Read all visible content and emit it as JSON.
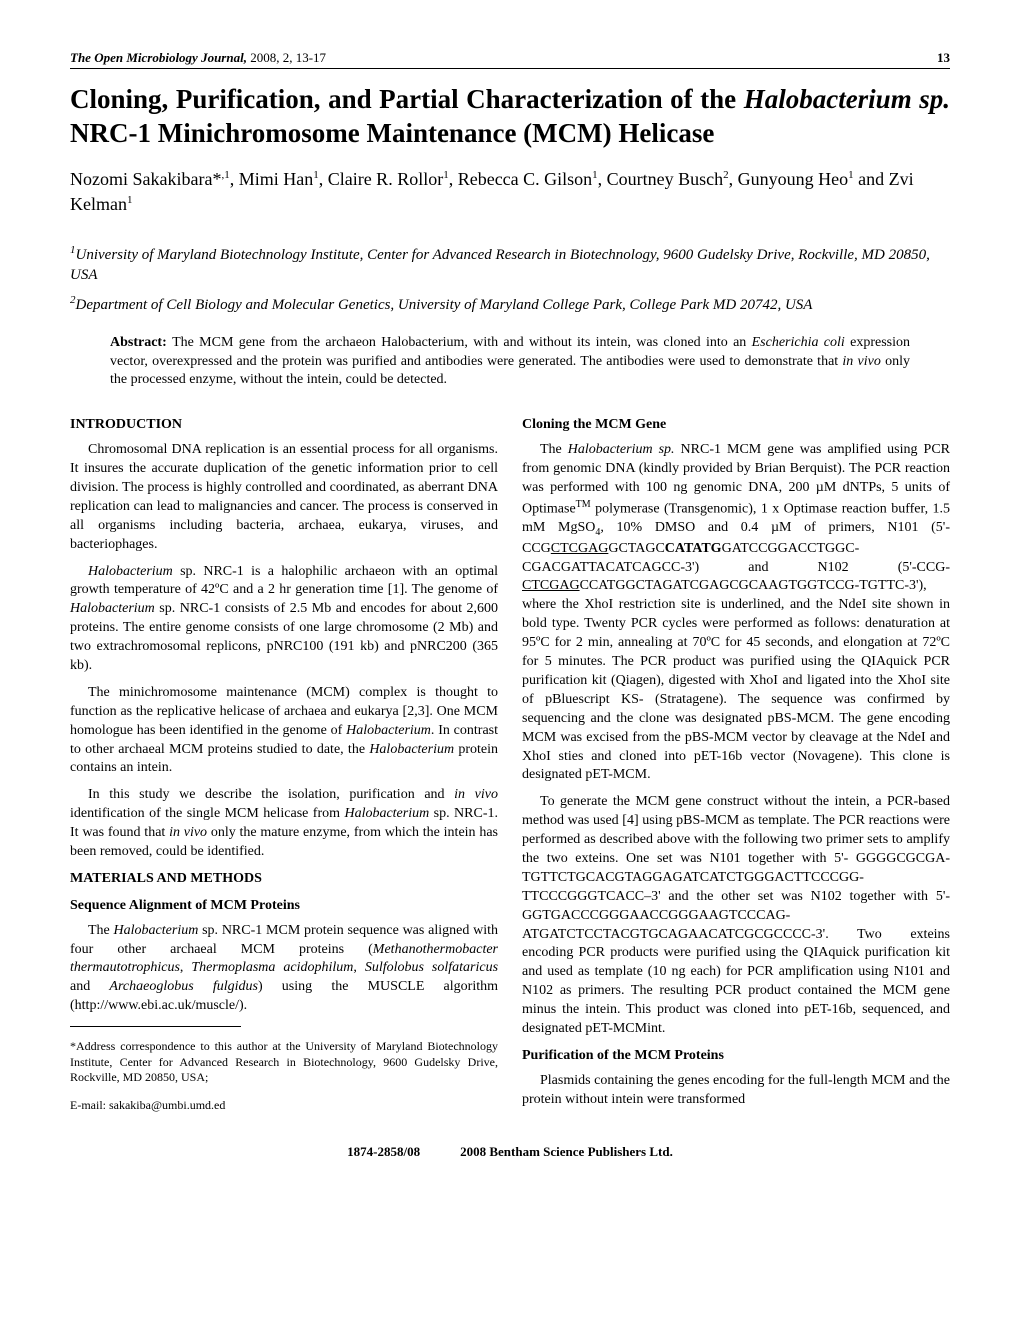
{
  "header": {
    "journal_name": "The Open Microbiology Journal,",
    "year_vol_pages": " 2008, 2, 13-17",
    "page_num": "13"
  },
  "title": {
    "part1": "Cloning, Purification, and Partial Characterization of the ",
    "italic": "Halobacterium sp.",
    "part2": " NRC-1 Minichromosome Maintenance (MCM) Helicase"
  },
  "authors": {
    "a1": "Nozomi Sakakibara*",
    "a1_sup": ",1",
    "a2": ", Mimi Han",
    "a2_sup": "1",
    "a3": ", Claire R. Rollor",
    "a3_sup": "1",
    "a4": ", Rebecca C. Gilson",
    "a4_sup": "1",
    "a5": ", Courtney Busch",
    "a5_sup": "2",
    "a6": ", Gunyoung Heo",
    "a6_sup": "1",
    "a7": " and Zvi Kelman",
    "a7_sup": "1"
  },
  "affil": {
    "a1_sup": "1",
    "a1": "University of Maryland Biotechnology Institute, Center for Advanced Research in Biotechnology, 9600 Gudelsky Drive, Rockville, MD 20850, USA",
    "a2_sup": "2",
    "a2": "Department of Cell Biology and Molecular Genetics, University of Maryland College Park, College Park MD 20742, USA"
  },
  "abstract": {
    "label": "Abstract: ",
    "text1": "The MCM gene from the archaeon Halobacterium, with and without its intein, was cloned into an ",
    "text_italic1": "Escherichia coli",
    "text2": " expression vector, overexpressed and the protein was purified and antibodies were generated. The antibodies were used to demonstrate that ",
    "text_italic2": "in vivo",
    "text3": " only the processed enzyme, without the intein, could be detected."
  },
  "left": {
    "h_intro": "INTRODUCTION",
    "p1": "Chromosomal DNA replication is an essential process for all organisms. It insures the accurate duplication of the genetic information prior to cell division. The process is highly controlled and coordinated, as aberrant DNA replication can lead to malignancies and cancer. The process is conserved in all organisms including bacteria, archaea, eukarya, viruses, and bacteriophages.",
    "p2a": "Halobacterium",
    "p2b": " sp. NRC-1 is a halophilic archaeon with an optimal growth temperature of 42ºC and a 2 hr generation time [1]. The genome of ",
    "p2c": "Halobacterium",
    "p2d": " sp. NRC-1 consists of 2.5 Mb and encodes for about 2,600 proteins. The entire genome consists of one large chromosome (2 Mb) and two extrachromosomal replicons, pNRC100 (191 kb) and pNRC200 (365 kb).",
    "p3a": "The minichromosome maintenance (MCM) complex is thought to function as the replicative helicase of archaea and eukarya [2,3]. One MCM homologue has been identified in the genome of ",
    "p3b": "Halobacterium",
    "p3c": ". In contrast to other archaeal MCM proteins studied to date, the ",
    "p3d": "Halobacterium",
    "p3e": " protein contains an intein.",
    "p4a": "In this study we describe the isolation, purification and ",
    "p4b": "in vivo",
    "p4c": " identification of the single MCM helicase from ",
    "p4d": "Halobacterium",
    "p4e": " sp. NRC-1. It was found that ",
    "p4f": "in vivo",
    "p4g": " only the mature enzyme, from which the intein has been removed, could be identified.",
    "h_mm": "MATERIALS AND METHODS",
    "h_seq": "Sequence Alignment of MCM Proteins",
    "p5a": "The ",
    "p5b": "Halobacterium",
    "p5c": " sp. NRC-1 MCM protein sequence was aligned with four other archaeal MCM proteins (",
    "p5d": "Methanothermobacter thermautotrophicus",
    "p5e": ", ",
    "p5f": "Thermoplasma acidophilum",
    "p5g": ", ",
    "p5h": "Sulfolobus solfataricus",
    "p5i": " and ",
    "p5j": "Archaeoglobus fulgidus",
    "p5k": ") using the MUSCLE algorithm (http://www.ebi.ac.uk/muscle/).",
    "fn1": "*Address correspondence to this author at the University of Maryland Biotechnology Institute, Center for Advanced Research in Biotechnology, 9600 Gudelsky Drive, Rockville, MD 20850, USA;",
    "fn2": "E-mail: sakakiba@umbi.umd.ed"
  },
  "right": {
    "h_clone": "Cloning the MCM Gene",
    "p1a": "The ",
    "p1b": "Halobacterium sp.",
    "p1c": " NRC-1 MCM gene was amplified using PCR from genomic DNA (kindly provided by Brian Berquist). The PCR reaction was performed with 100 ng genomic DNA, 200 µM dNTPs, 5 units of Optimase",
    "p1tm": "TM",
    "p1d": " polymerase (Transgenomic), 1 x Optimase reaction buffer, 1.5 mM MgSO",
    "p1sub": "4",
    "p1e": ", 10% DMSO and 0.4 µM of primers, N101 (5'-CCG",
    "p1u1": "CTCGAG",
    "p1f": "GCTAGC",
    "p1bold": "CATATG",
    "p1g": "GATCCGGACCTGGC-CGACGATTACATCAGCC-3') and N102 (5'-CCG-",
    "p1u2": "CTCGAG",
    "p1h": "CCATGGCTAGATCGAGCGCAAGTGGTCCG-TGTTC-3'), where the XhoI restriction site is underlined, and the NdeI site shown in bold type. Twenty PCR cycles were performed as follows: denaturation at 95ºC for 2 min, annealing at 70ºC for 45 seconds, and elongation at 72ºC for 5 minutes. The PCR product was purified using the QIAquick PCR purification kit (Qiagen), digested with XhoI and ligated into the XhoI site of pBluescript KS- (Stratagene). The sequence was confirmed by sequencing and the clone was designated pBS-MCM. The gene encoding MCM was excised from the pBS-MCM vector by cleavage at the NdeI and XhoI sties and cloned into pET-16b vector (Novagene). This clone is designated pET-MCM.",
    "p2": "To generate the MCM gene construct without the intein, a PCR-based method was used [4] using pBS-MCM as template. The PCR reactions were performed as described above with the following two primer sets to amplify the two exteins. One set was N101 together with 5'- GGGGCGCGA-TGTTCTGCACGTAGGAGATCATCTGGGACTTCCCGG-TTCCCGGGTCACC–3' and the other set was N102 together with 5'-GGTGACCCGGGAACCGGGAAGTCCCAG-ATGATCTCCTACGTGCAGAACATCGCGCCCC-3'. Two exteins encoding PCR products were purified using the QIAquick purification kit and used as template (10 ng each) for PCR amplification using N101 and N102 as primers. The resulting PCR product contained the MCM gene minus the intein. This product was cloned into pET-16b, sequenced, and designated pET-MCMint.",
    "h_pur": "Purification of the MCM Proteins",
    "p3": "Plasmids containing the genes encoding for the full-length MCM and the protein without intein were transformed"
  },
  "footer": {
    "code": "1874-2858/08",
    "copyright": "2008 Bentham Science Publishers Ltd."
  }
}
